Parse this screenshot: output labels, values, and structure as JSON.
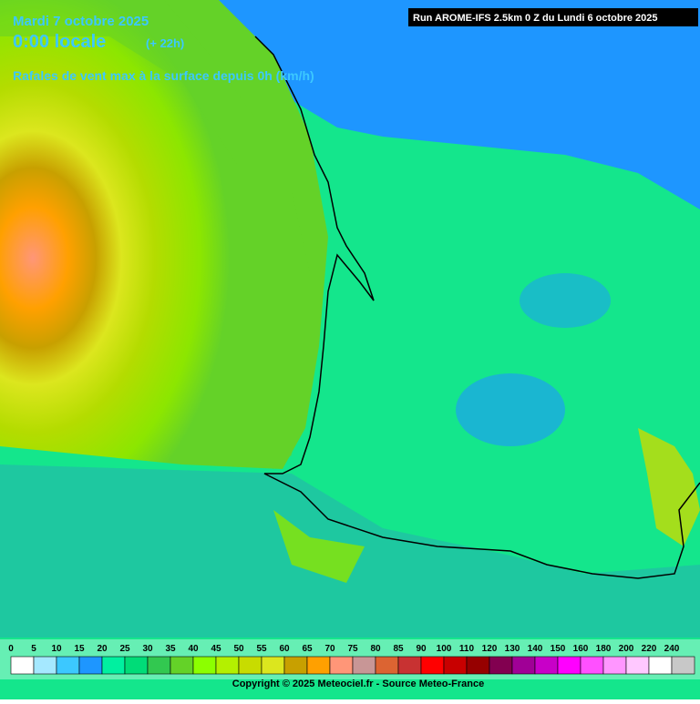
{
  "header": {
    "date": "Mardi 7 octobre 2025",
    "time": "0:00 locale",
    "offset": "(+ 22h)",
    "field": "Rafales de vent max à la surface depuis 0h (km/h)",
    "run": "Run AROME-IFS 2.5km 0 Z du Lundi 6 octobre 2025"
  },
  "legend": {
    "labels": [
      0,
      5,
      10,
      15,
      20,
      25,
      30,
      35,
      40,
      45,
      50,
      55,
      60,
      65,
      70,
      75,
      80,
      85,
      90,
      100,
      110,
      120,
      130,
      140,
      150,
      160,
      180,
      200,
      220,
      240
    ],
    "colors": [
      "#ffffff",
      "#a5e8ff",
      "#3cc8ff",
      "#1e96ff",
      "#00f0a0",
      "#00dc78",
      "#32c850",
      "#64d228",
      "#8cff00",
      "#b4f000",
      "#c8dc00",
      "#dce61e",
      "#c8a000",
      "#ffa000",
      "#ff9678",
      "#c89696",
      "#dc6432",
      "#c83232",
      "#ff0000",
      "#c80000",
      "#960000",
      "#820050",
      "#a00096",
      "#c800c8",
      "#ff00ff",
      "#ff50ff",
      "#ff96ff",
      "#ffc8ff",
      "#ffffff",
      "#c8c8c8"
    ]
  },
  "footer": {
    "copyright": "Copyright © 2025 Meteociel.fr - Source Meteo-France"
  }
}
